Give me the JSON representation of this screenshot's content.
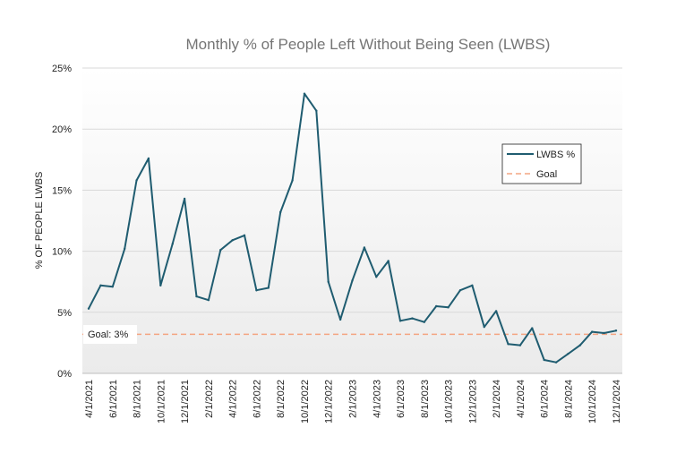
{
  "chart_data": {
    "type": "line",
    "title": "Monthly % of People Left Without Being Seen (LWBS)",
    "xlabel": "",
    "ylabel": "% OF PEOPLE LWBS",
    "ylim": [
      0,
      25
    ],
    "yticks": [
      "0%",
      "5%",
      "10%",
      "15%",
      "20%",
      "25%"
    ],
    "ytick_values": [
      0,
      5,
      10,
      15,
      20,
      25
    ],
    "grid": "horizontal",
    "legend_position": "right",
    "x": [
      "4/1/2021",
      "5/1/2021",
      "6/1/2021",
      "7/1/2021",
      "8/1/2021",
      "9/1/2021",
      "10/1/2021",
      "11/1/2021",
      "12/1/2021",
      "1/1/2022",
      "2/1/2022",
      "3/1/2022",
      "4/1/2022",
      "5/1/2022",
      "6/1/2022",
      "7/1/2022",
      "8/1/2022",
      "9/1/2022",
      "10/1/2022",
      "11/1/2022",
      "12/1/2022",
      "1/1/2023",
      "2/1/2023",
      "3/1/2023",
      "4/1/2023",
      "5/1/2023",
      "6/1/2023",
      "7/1/2023",
      "8/1/2023",
      "9/1/2023",
      "10/1/2023",
      "11/1/2023",
      "12/1/2023",
      "1/1/2024",
      "2/1/2024",
      "3/1/2024",
      "4/1/2024",
      "5/1/2024",
      "6/1/2024",
      "7/1/2024",
      "8/1/2024",
      "9/1/2024",
      "10/1/2024",
      "11/1/2024",
      "12/1/2024"
    ],
    "xtick_labels": [
      "4/1/2021",
      "6/1/2021",
      "8/1/2021",
      "10/1/2021",
      "12/1/2021",
      "2/1/2022",
      "4/1/2022",
      "6/1/2022",
      "8/1/2022",
      "10/1/2022",
      "12/1/2022",
      "2/1/2023",
      "4/1/2023",
      "6/1/2023",
      "8/1/2023",
      "10/1/2023",
      "12/1/2023",
      "2/1/2024",
      "4/1/2024",
      "6/1/2024",
      "8/1/2024",
      "10/1/2024",
      "12/1/2024"
    ],
    "series": [
      {
        "name": "LWBS %",
        "color": "#1f5c70",
        "style": "solid",
        "values": [
          5.3,
          7.2,
          7.1,
          10.2,
          15.8,
          17.6,
          7.2,
          10.6,
          14.3,
          6.3,
          6.0,
          10.1,
          10.9,
          11.3,
          6.8,
          7.0,
          13.2,
          15.8,
          22.9,
          21.5,
          7.5,
          4.4,
          7.6,
          10.3,
          7.9,
          9.2,
          4.3,
          4.5,
          4.2,
          5.5,
          5.4,
          6.8,
          7.2,
          3.8,
          5.1,
          2.4,
          2.3,
          3.7,
          1.1,
          0.9,
          1.6,
          2.3,
          3.4,
          3.3,
          3.5
        ]
      },
      {
        "name": "Goal",
        "color": "#f4a582",
        "style": "dashed",
        "constant": 3.2
      }
    ],
    "annotations": [
      {
        "text": "Goal: 3%"
      }
    ]
  }
}
